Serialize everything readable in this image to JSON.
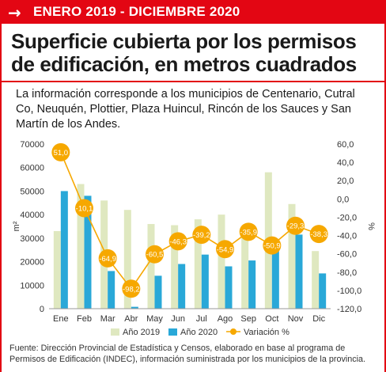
{
  "header": {
    "date_range": "ENERO 2019 - DICIEMBRE 2020",
    "title": "Superficie cubierta por los permisos de edificación, en metros cuadrados",
    "intro": "La información corresponde a los municipios de Centenario, Cutral Co, Neuquén, Plottier, Plaza Huincul, Rincón de los Sauces y San Martín de los Andes.",
    "arrow_icon": "arrow-right-icon"
  },
  "chart_data": {
    "type": "bar",
    "categories": [
      "Ene",
      "Feb",
      "Mar",
      "Abr",
      "May",
      "Jun",
      "Jul",
      "Ago",
      "Sep",
      "Oct",
      "Nov",
      "Dic"
    ],
    "series": [
      {
        "name": "Año 2019",
        "kind": "bar",
        "color": "#dfe8c0",
        "values": [
          33000,
          53000,
          46000,
          42000,
          36000,
          35500,
          38000,
          40000,
          32000,
          58000,
          44500,
          24500
        ]
      },
      {
        "name": "Año 2020",
        "kind": "bar",
        "color": "#29a8d8",
        "values": [
          50000,
          48000,
          16000,
          800,
          14000,
          19000,
          23000,
          18000,
          20500,
          28500,
          31500,
          15000
        ]
      },
      {
        "name": "Variación %",
        "kind": "line",
        "axis": "right",
        "color": "#f6a800",
        "values": [
          51.0,
          -10.1,
          -64.9,
          -98.2,
          -60.5,
          -46.3,
          -39.2,
          -54.9,
          -35.9,
          -50.9,
          -29.3,
          -38.3
        ],
        "labels": [
          "51,0",
          "-10,1",
          "-64,9",
          "-98,2",
          "-60,5",
          "-46,3",
          "-39,2",
          "-54,9",
          "-35,9",
          "-50,9",
          "-29,3",
          "-38,3"
        ]
      }
    ],
    "ylabel": "m²",
    "y2label": "%",
    "ylim": [
      0,
      70000
    ],
    "y2lim": [
      -120,
      60
    ],
    "yticks": [
      "0",
      "10000",
      "20000",
      "30000",
      "40000",
      "50000",
      "60000",
      "70000"
    ],
    "y2ticks": [
      "-120,0",
      "-100,0",
      "-80,0",
      "-60,0",
      "-40,0",
      "-20,0",
      "0,0",
      "20,0",
      "40,0",
      "60,0"
    ],
    "grid": false,
    "legend": "bottom"
  },
  "footer": {
    "source": "Fuente: Dirección Provincial de Estadística y Censos, elaborado en base al programa de Permisos de Edificación (INDEC), información suministrada por los municipios de la provincia."
  }
}
